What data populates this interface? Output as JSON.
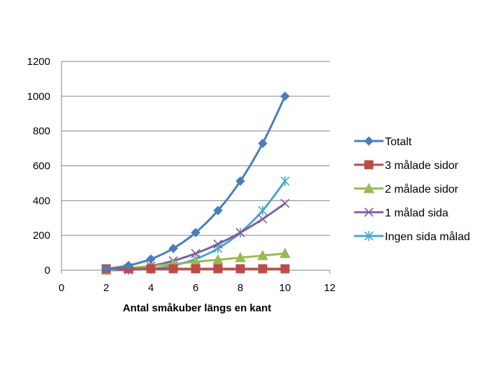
{
  "chart_data": {
    "type": "line",
    "title": "",
    "xlabel": "Antal småkuber längs en kant",
    "ylabel": "",
    "xlim": [
      0,
      12
    ],
    "ylim": [
      0,
      1200
    ],
    "x_ticks": [
      0,
      2,
      4,
      6,
      8,
      10,
      12
    ],
    "y_ticks": [
      0,
      200,
      400,
      600,
      800,
      1000,
      1200
    ],
    "grid": "horizontal",
    "legend_position": "right",
    "x": [
      2,
      3,
      4,
      5,
      6,
      7,
      8,
      9,
      10
    ],
    "series": [
      {
        "name": "Totalt",
        "color": "#4a7ebb",
        "marker": "diamond",
        "values": [
          8,
          27,
          64,
          125,
          216,
          343,
          512,
          729,
          1000
        ]
      },
      {
        "name": "3 målade sidor",
        "color": "#be4b48",
        "marker": "square",
        "values": [
          8,
          8,
          8,
          8,
          8,
          8,
          8,
          8,
          8
        ]
      },
      {
        "name": "2 målade sidor",
        "color": "#98b954",
        "marker": "triangle",
        "values": [
          0,
          12,
          24,
          36,
          48,
          60,
          72,
          84,
          96
        ]
      },
      {
        "name": "1 målad sida",
        "color": "#7d60a0",
        "marker": "x",
        "values": [
          0,
          6,
          24,
          54,
          96,
          150,
          216,
          294,
          384
        ]
      },
      {
        "name": "Ingen sida målad",
        "color": "#46aac5",
        "marker": "star",
        "values": [
          0,
          1,
          8,
          27,
          64,
          125,
          216,
          343,
          512
        ]
      }
    ]
  }
}
